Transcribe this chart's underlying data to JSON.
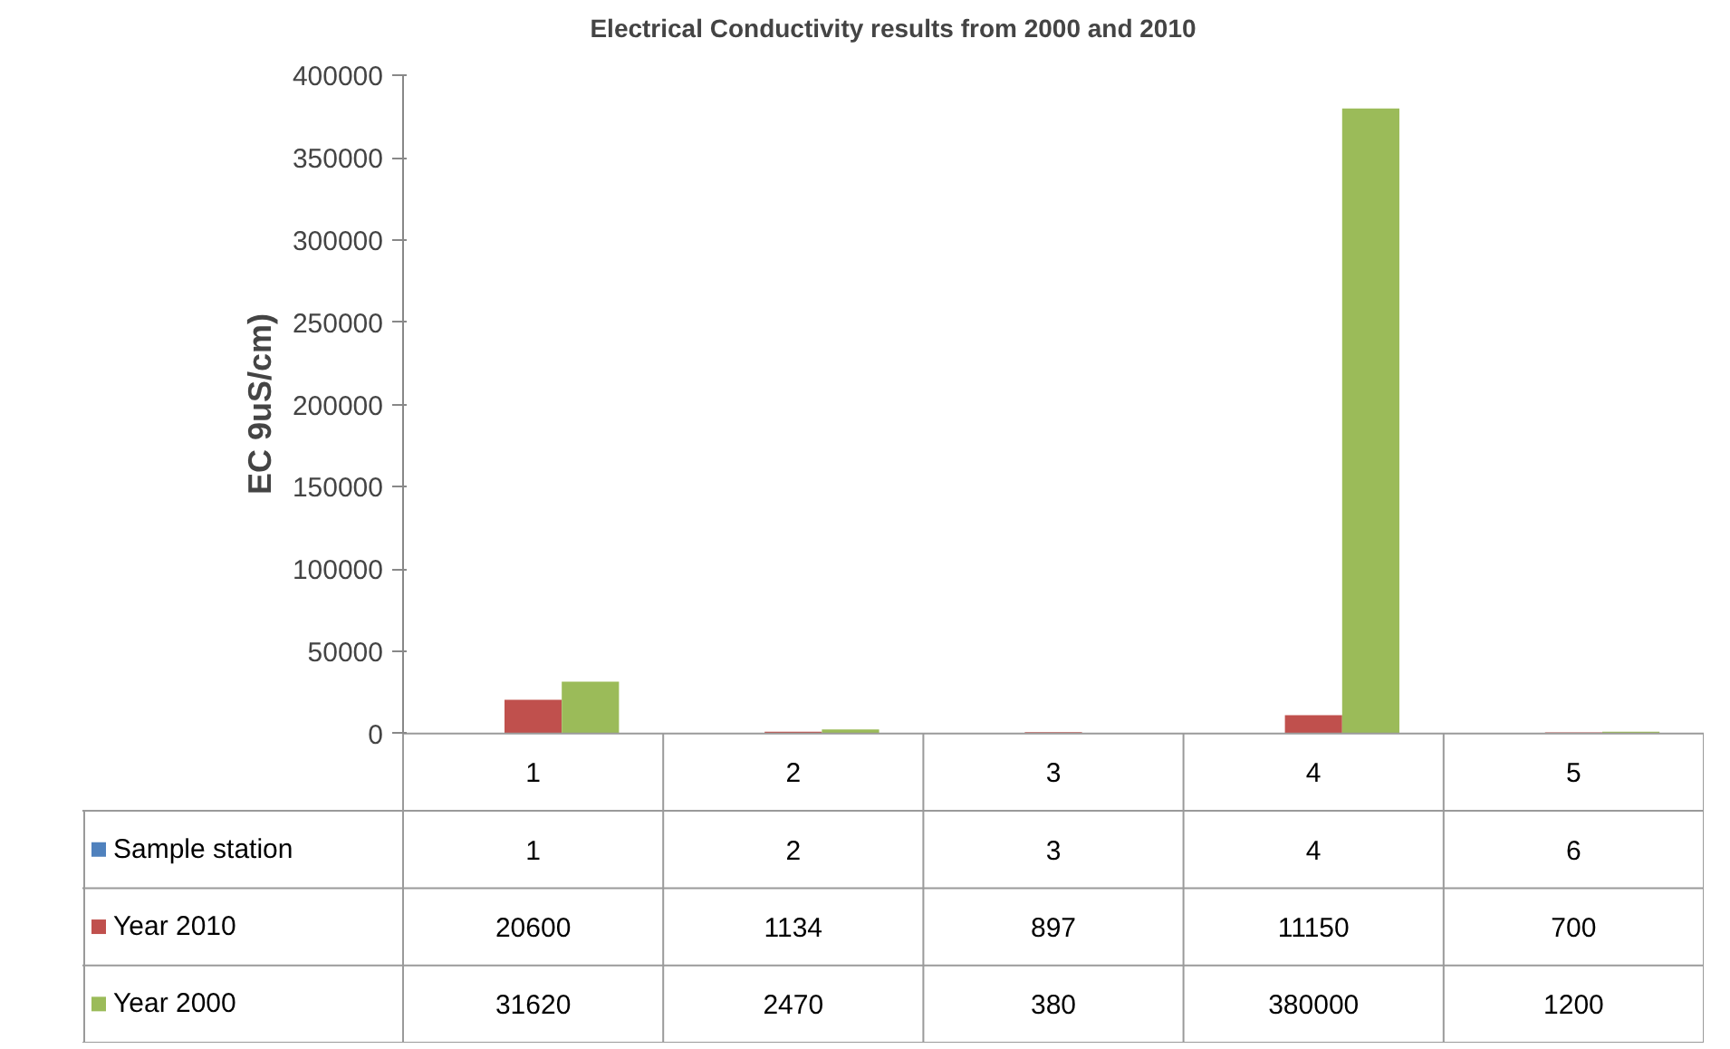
{
  "chart_data": {
    "type": "bar",
    "title": "Electrical Conductivity results from 2000 and 2010",
    "ylabel": "EC 9uS/cm)",
    "categories": [
      "1",
      "2",
      "3",
      "4",
      "5"
    ],
    "series": [
      {
        "name": "Sample station",
        "color": "#4f81bd",
        "values": [
          1,
          2,
          3,
          4,
          6
        ]
      },
      {
        "name": "Year 2010",
        "color": "#c0504d",
        "values": [
          20600,
          1134,
          897,
          11150,
          700
        ]
      },
      {
        "name": "Year 2000",
        "color": "#9bbb59",
        "values": [
          31620,
          2470,
          380,
          380000,
          1200
        ]
      }
    ],
    "ylim": [
      0,
      400000
    ],
    "yticks": [
      0,
      50000,
      100000,
      150000,
      200000,
      250000,
      300000,
      350000,
      400000
    ],
    "grid": false,
    "data_labels": true,
    "legend": "bottom"
  }
}
